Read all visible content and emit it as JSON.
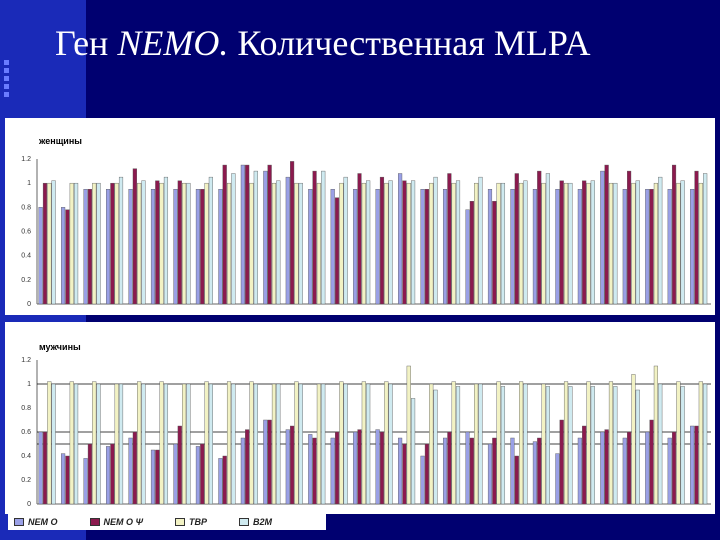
{
  "slide": {
    "title_prefix": "Ген ",
    "title_italic": "NEMO.",
    "title_suffix": " Количественная MLPA"
  },
  "colors": {
    "nemo": "#9aa0e6",
    "nemo_psi": "#8b1a4e",
    "tbp": "#f2f2c4",
    "b2m": "#cfeaf0"
  },
  "chart_data": [
    {
      "type": "bar",
      "title": "женщины",
      "ylim": [
        0,
        1.2
      ],
      "yticks": [
        "0",
        "0.2",
        "0.4",
        "0.6",
        "0.8",
        "1",
        "1.2"
      ],
      "group_count": 30,
      "series": [
        {
          "name": "NEM O",
          "values": [
            0.8,
            0.8,
            0.95,
            0.95,
            0.95,
            0.95,
            0.95,
            0.95,
            0.95,
            1.15,
            1.1,
            1.05,
            0.95,
            0.95,
            0.95,
            0.95,
            1.08,
            0.95,
            0.95,
            0.78,
            0.95,
            0.95,
            0.95,
            0.95,
            0.95,
            1.1,
            0.95,
            0.95,
            0.95,
            0.95
          ]
        },
        {
          "name": "NEM O Ψ",
          "values": [
            1.0,
            0.78,
            0.95,
            1.0,
            1.12,
            1.02,
            1.02,
            0.95,
            1.15,
            1.15,
            1.15,
            1.18,
            1.1,
            0.88,
            1.08,
            1.05,
            1.02,
            0.95,
            1.08,
            0.85,
            0.85,
            1.08,
            1.1,
            1.02,
            1.02,
            1.15,
            1.1,
            0.95,
            1.15,
            1.1
          ]
        },
        {
          "name": "TBP",
          "values": [
            1.0,
            1.0,
            1.0,
            1.0,
            1.0,
            1.0,
            1.0,
            1.0,
            1.0,
            1.0,
            1.0,
            1.0,
            1.0,
            1.0,
            1.0,
            1.0,
            1.0,
            1.0,
            1.0,
            1.0,
            1.0,
            1.0,
            1.0,
            1.0,
            1.0,
            1.0,
            1.0,
            1.0,
            1.0,
            1.0
          ]
        },
        {
          "name": "B2M",
          "values": [
            1.02,
            1.0,
            1.0,
            1.05,
            1.02,
            1.05,
            1.0,
            1.05,
            1.08,
            1.1,
            1.02,
            1.0,
            1.1,
            1.05,
            1.02,
            1.02,
            1.02,
            1.05,
            1.02,
            1.05,
            1.0,
            1.02,
            1.08,
            1.0,
            1.02,
            1.0,
            1.02,
            1.05,
            1.02,
            1.08
          ]
        }
      ]
    },
    {
      "type": "bar",
      "title": "мужчины",
      "ylim": [
        0,
        1.2
      ],
      "yticks": [
        "0",
        "0.2",
        "0.4",
        "0.6",
        "0.8",
        "1",
        "1.2"
      ],
      "reference_lines": [
        0.5,
        0.6,
        1.0
      ],
      "group_count": 30,
      "series": [
        {
          "name": "NEM O",
          "values": [
            0.6,
            0.42,
            0.38,
            0.48,
            0.55,
            0.45,
            0.5,
            0.48,
            0.38,
            0.55,
            0.7,
            0.62,
            0.58,
            0.55,
            0.6,
            0.62,
            0.55,
            0.4,
            0.55,
            0.6,
            0.5,
            0.55,
            0.52,
            0.42,
            0.55,
            0.6,
            0.55,
            0.6,
            0.55,
            0.65
          ]
        },
        {
          "name": "NEM O Ψ",
          "values": [
            0.6,
            0.4,
            0.5,
            0.5,
            0.6,
            0.45,
            0.65,
            0.5,
            0.4,
            0.62,
            0.7,
            0.65,
            0.55,
            0.6,
            0.62,
            0.6,
            0.5,
            0.5,
            0.6,
            0.55,
            0.55,
            0.4,
            0.55,
            0.7,
            0.65,
            0.62,
            0.6,
            0.7,
            0.6,
            0.65
          ]
        },
        {
          "name": "TBP",
          "values": [
            1.02,
            1.02,
            1.02,
            1.0,
            1.02,
            1.02,
            1.0,
            1.02,
            1.02,
            1.02,
            1.0,
            1.02,
            1.0,
            1.02,
            1.02,
            1.02,
            1.15,
            1.0,
            1.02,
            1.0,
            1.02,
            1.02,
            1.0,
            1.02,
            1.02,
            1.02,
            1.08,
            1.15,
            1.02,
            1.02
          ]
        },
        {
          "name": "B2M",
          "values": [
            1.0,
            1.0,
            1.0,
            1.0,
            1.0,
            1.0,
            1.0,
            1.0,
            1.0,
            1.0,
            1.0,
            1.0,
            1.0,
            1.0,
            1.0,
            1.0,
            0.88,
            0.95,
            0.98,
            1.0,
            0.98,
            1.0,
            0.98,
            0.98,
            0.98,
            0.98,
            0.95,
            1.0,
            0.98,
            1.0
          ]
        }
      ]
    }
  ],
  "legend": [
    {
      "label": "NEM O",
      "color": "#9aa0e6"
    },
    {
      "label": "NEM O  Ψ",
      "color": "#8b1a4e"
    },
    {
      "label": "TBP",
      "color": "#f2f2c4"
    },
    {
      "label": "B2M",
      "color": "#cfeaf0"
    }
  ]
}
